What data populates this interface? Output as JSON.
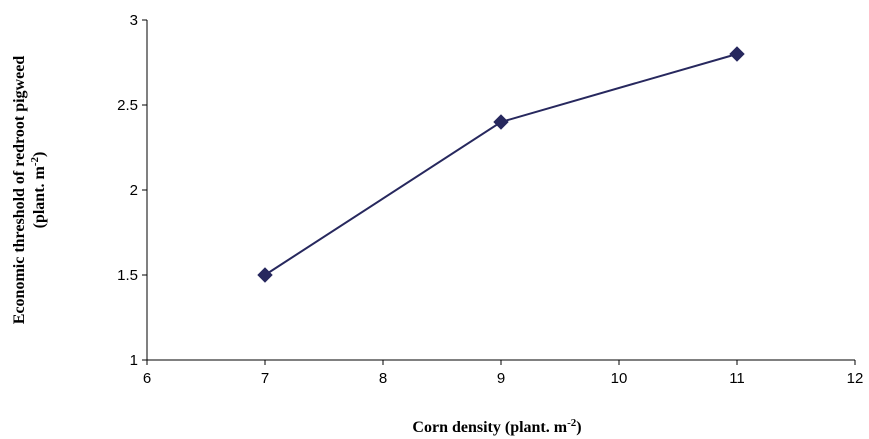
{
  "chart_data": {
    "type": "line",
    "title": "",
    "xlabel": {
      "text": "Corn density (plant. m",
      "sup": "-2",
      "tail": ")"
    },
    "ylabel": {
      "line1": "Economic threshold of redroot pigweed",
      "line2_text": "(plant. m",
      "line2_sup": "-2",
      "line2_tail": ")"
    },
    "xlim": [
      6,
      12
    ],
    "ylim": [
      1,
      3
    ],
    "xticks": [
      "6",
      "7",
      "8",
      "9",
      "10",
      "11",
      "12"
    ],
    "yticks": [
      "1",
      "1.5",
      "2",
      "2.5",
      "3"
    ],
    "grid": false,
    "legend": "none",
    "series": [
      {
        "x": [
          7,
          9,
          11
        ],
        "y": [
          1.5,
          2.4,
          2.8
        ],
        "marker": "diamond",
        "color": "#27285e"
      }
    ]
  }
}
